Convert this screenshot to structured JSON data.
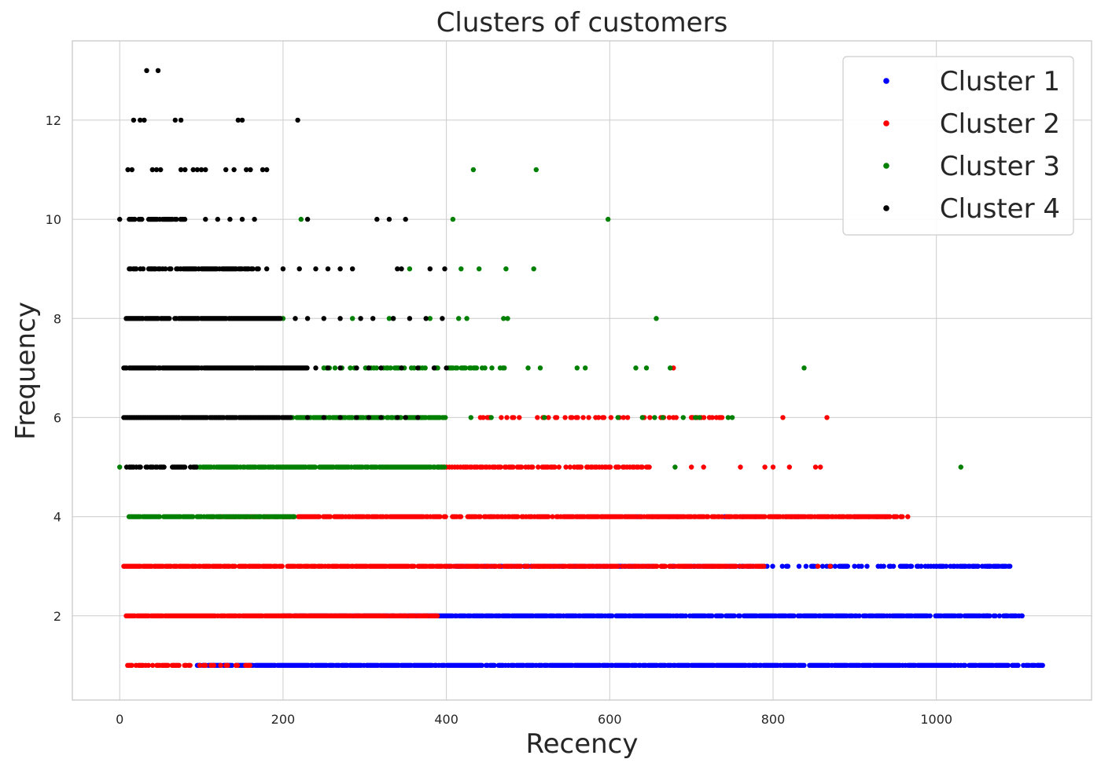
{
  "chart_data": {
    "type": "scatter",
    "title": "Clusters of customers",
    "xlabel": "Recency",
    "ylabel": "Frequency",
    "xlim": [
      -58,
      1190
    ],
    "ylim": [
      0.3,
      13.6
    ],
    "xticks": [
      0,
      200,
      400,
      600,
      800,
      1000
    ],
    "yticks": [
      2,
      4,
      6,
      8,
      10,
      12
    ],
    "grid": true,
    "legend_position": "top-right",
    "series": [
      {
        "name": "Cluster 1",
        "color": "#0000ff",
        "bands": [
          {
            "y": 1,
            "ranges": [
              [
                95,
                1130
              ]
            ],
            "density": 0.85
          },
          {
            "y": 2,
            "ranges": [
              [
                200,
                1105
              ]
            ],
            "density": 0.8
          },
          {
            "y": 3,
            "ranges": [
              [
                400,
                1090
              ]
            ],
            "density": 0.45
          },
          {
            "y": 4,
            "ranges": [
              [
                620,
                960
              ]
            ],
            "density": 0.1
          }
        ],
        "points": [
          [
            1030,
            2
          ],
          [
            1045,
            2
          ],
          [
            1062,
            2
          ],
          [
            1085,
            2
          ],
          [
            1105,
            2
          ],
          [
            1000,
            3
          ],
          [
            1045,
            3
          ],
          [
            1050,
            3
          ],
          [
            1062,
            3
          ],
          [
            1080,
            3
          ],
          [
            1090,
            3
          ],
          [
            948,
            4
          ],
          [
            900,
            4
          ],
          [
            1100,
            1
          ],
          [
            1125,
            1
          ],
          [
            1130,
            1
          ]
        ]
      },
      {
        "name": "Cluster 2",
        "color": "#ff0000",
        "bands": [
          {
            "y": 1,
            "ranges": [
              [
                8,
                165
              ]
            ],
            "density": 0.5
          },
          {
            "y": 2,
            "ranges": [
              [
                8,
                390
              ]
            ],
            "density": 0.9
          },
          {
            "y": 3,
            "ranges": [
              [
                5,
                790
              ]
            ],
            "density": 0.85
          },
          {
            "y": 4,
            "ranges": [
              [
                110,
                960
              ]
            ],
            "density": 0.8
          },
          {
            "y": 5,
            "ranges": [
              [
                390,
                650
              ]
            ],
            "density": 0.55
          },
          {
            "y": 6,
            "ranges": [
              [
                440,
                740
              ]
            ],
            "density": 0.3
          }
        ],
        "points": [
          [
            700,
            5
          ],
          [
            715,
            5
          ],
          [
            760,
            5
          ],
          [
            790,
            5
          ],
          [
            800,
            5
          ],
          [
            820,
            5
          ],
          [
            852,
            5
          ],
          [
            858,
            5
          ],
          [
            812,
            6
          ],
          [
            866,
            6
          ],
          [
            678,
            7
          ],
          [
            965,
            4
          ],
          [
            920,
            4
          ],
          [
            855,
            3
          ],
          [
            870,
            3
          ],
          [
            700,
            6
          ],
          [
            722,
            6
          ]
        ]
      },
      {
        "name": "Cluster 3",
        "color": "#008000",
        "bands": [
          {
            "y": 4,
            "ranges": [
              [
                8,
                215
              ]
            ],
            "density": 0.9
          },
          {
            "y": 5,
            "ranges": [
              [
                95,
                400
              ]
            ],
            "density": 0.9
          },
          {
            "y": 6,
            "ranges": [
              [
                210,
                400
              ]
            ],
            "density": 0.85
          },
          {
            "y": 7,
            "ranges": [
              [
                250,
                480
              ]
            ],
            "density": 0.3
          }
        ],
        "points": [
          [
            0,
            5
          ],
          [
            680,
            5
          ],
          [
            1030,
            5
          ],
          [
            430,
            6
          ],
          [
            455,
            6
          ],
          [
            610,
            6
          ],
          [
            640,
            6
          ],
          [
            655,
            6
          ],
          [
            665,
            6
          ],
          [
            690,
            6
          ],
          [
            705,
            6
          ],
          [
            710,
            6
          ],
          [
            745,
            6
          ],
          [
            750,
            6
          ],
          [
            520,
            6
          ],
          [
            500,
            7
          ],
          [
            515,
            7
          ],
          [
            560,
            7
          ],
          [
            570,
            7
          ],
          [
            632,
            7
          ],
          [
            645,
            7
          ],
          [
            674,
            7
          ],
          [
            838,
            7
          ],
          [
            330,
            8
          ],
          [
            335,
            8
          ],
          [
            380,
            8
          ],
          [
            415,
            8
          ],
          [
            425,
            8
          ],
          [
            470,
            8
          ],
          [
            475,
            8
          ],
          [
            657,
            8
          ],
          [
            200,
            8
          ],
          [
            285,
            8
          ],
          [
            355,
            9
          ],
          [
            418,
            9
          ],
          [
            440,
            9
          ],
          [
            473,
            9
          ],
          [
            507,
            9
          ],
          [
            222,
            10
          ],
          [
            408,
            10
          ],
          [
            598,
            10
          ],
          [
            433,
            11
          ],
          [
            510,
            11
          ]
        ]
      },
      {
        "name": "Cluster 4",
        "color": "#000000",
        "bands": [
          {
            "y": 5,
            "ranges": [
              [
                5,
                95
              ]
            ],
            "density": 0.7
          },
          {
            "y": 6,
            "ranges": [
              [
                5,
                210
              ]
            ],
            "density": 0.95
          },
          {
            "y": 7,
            "ranges": [
              [
                5,
                230
              ]
            ],
            "density": 0.95
          },
          {
            "y": 8,
            "ranges": [
              [
                8,
                200
              ]
            ],
            "density": 0.9
          },
          {
            "y": 9,
            "ranges": [
              [
                10,
                170
              ]
            ],
            "density": 0.7
          },
          {
            "y": 10,
            "ranges": [
              [
                10,
                80
              ]
            ],
            "density": 0.7
          }
        ],
        "points": [
          [
            230,
            6
          ],
          [
            250,
            6
          ],
          [
            270,
            6
          ],
          [
            290,
            6
          ],
          [
            305,
            6
          ],
          [
            320,
            6
          ],
          [
            340,
            6
          ],
          [
            350,
            6
          ],
          [
            365,
            6
          ],
          [
            240,
            7
          ],
          [
            255,
            7
          ],
          [
            270,
            7
          ],
          [
            290,
            7
          ],
          [
            305,
            7
          ],
          [
            320,
            7
          ],
          [
            345,
            7
          ],
          [
            365,
            7
          ],
          [
            385,
            7
          ],
          [
            400,
            7
          ],
          [
            215,
            8
          ],
          [
            230,
            8
          ],
          [
            250,
            8
          ],
          [
            270,
            8
          ],
          [
            295,
            8
          ],
          [
            310,
            8
          ],
          [
            335,
            8
          ],
          [
            355,
            8
          ],
          [
            375,
            8
          ],
          [
            395,
            8
          ],
          [
            180,
            9
          ],
          [
            200,
            9
          ],
          [
            220,
            9
          ],
          [
            240,
            9
          ],
          [
            255,
            9
          ],
          [
            270,
            9
          ],
          [
            285,
            9
          ],
          [
            340,
            9
          ],
          [
            345,
            9
          ],
          [
            380,
            9
          ],
          [
            398,
            9
          ],
          [
            0,
            10
          ],
          [
            105,
            10
          ],
          [
            120,
            10
          ],
          [
            135,
            10
          ],
          [
            150,
            10
          ],
          [
            165,
            10
          ],
          [
            230,
            10
          ],
          [
            315,
            10
          ],
          [
            330,
            10
          ],
          [
            350,
            10
          ],
          [
            10,
            11
          ],
          [
            15,
            11
          ],
          [
            40,
            11
          ],
          [
            45,
            11
          ],
          [
            50,
            11
          ],
          [
            75,
            11
          ],
          [
            80,
            11
          ],
          [
            90,
            11
          ],
          [
            95,
            11
          ],
          [
            100,
            11
          ],
          [
            105,
            11
          ],
          [
            130,
            11
          ],
          [
            140,
            11
          ],
          [
            155,
            11
          ],
          [
            160,
            11
          ],
          [
            175,
            11
          ],
          [
            180,
            11
          ],
          [
            17,
            12
          ],
          [
            25,
            12
          ],
          [
            30,
            12
          ],
          [
            68,
            12
          ],
          [
            75,
            12
          ],
          [
            145,
            12
          ],
          [
            150,
            12
          ],
          [
            218,
            12
          ],
          [
            33,
            13
          ],
          [
            47,
            13
          ]
        ]
      }
    ]
  }
}
